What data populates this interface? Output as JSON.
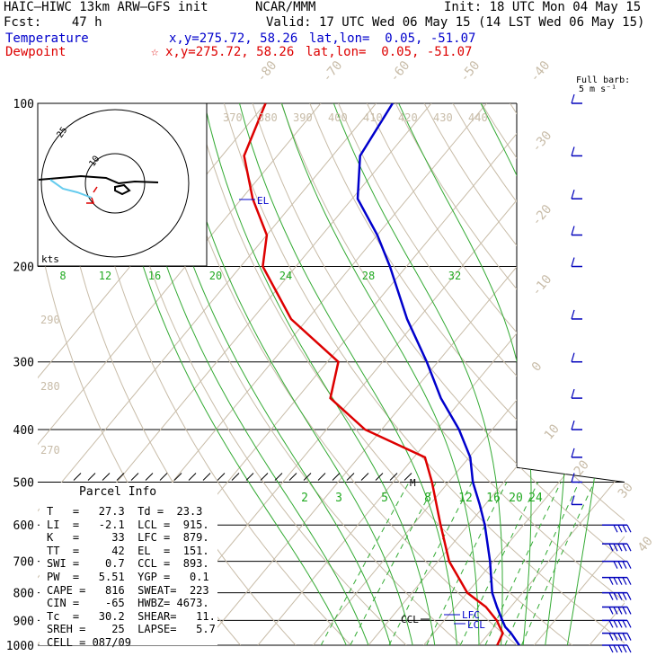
{
  "header": {
    "model": "HAIC–HIWC 13km ARW–GFS init",
    "org": "NCAR/MMM",
    "init": "Init: 18 UTC Mon 04 May 15",
    "fcst": "Fcst:    47 h",
    "valid": "Valid: 17 UTC Wed 06 May 15 (14 LST Wed 06 May 15)",
    "temp_label": "Temperature",
    "temp_xy": "x,y=275.72, 58.26",
    "temp_latlon": "lat,lon=  0.05, -51.07",
    "dew_label": "Dewpoint",
    "dew_star": "☆",
    "dew_xy": "x,y=275.72, 58.26",
    "dew_latlon": "lat,lon=  0.05, -51.07",
    "color_temp": "#0000cc",
    "color_dew": "#dd0000"
  },
  "barb_key": {
    "line1": "Full barb:",
    "line2": "5 m s⁻¹"
  },
  "hodograph": {
    "units": "kts",
    "ring_labels": [
      "10",
      "25"
    ]
  },
  "parcel_info": {
    "title": "Parcel Info",
    "rows": [
      "T   =   27.3  Td =  23.3",
      "LI  =   -2.1  LCL =  915.",
      "K   =     33  LFC =  879.",
      "TT  =     42  EL  =  151.",
      "SWI =    0.7  CCL =  893.",
      "PW  =   5.51  YGP =   0.1",
      "CAPE =   816  SWEAT=  223",
      "CIN =    -65  HWBZ= 4673.",
      "Tc  =   30.2  SHEAR=   11.",
      "SREH =    25  LAPSE=   5.7",
      "CELL = 087/09"
    ]
  },
  "chart_data": {
    "type": "line",
    "chart_kind": "skew-T log-p",
    "y_scale": "log",
    "pressure_ticks": [
      "100",
      "200",
      "300",
      "400",
      "500",
      "600",
      "700",
      "800",
      "900",
      "1000"
    ],
    "pressure_values": [
      100,
      200,
      300,
      400,
      500,
      600,
      700,
      800,
      900,
      1000
    ],
    "ylim": [
      1000,
      100
    ],
    "isotherm_labels": [
      "-80",
      "-70",
      "-60",
      "-50",
      "-40",
      "-30",
      "-20",
      "-10",
      "0",
      "10",
      "20",
      "30",
      "40"
    ],
    "dry_adiabat_labels_upper": [
      "370",
      "380",
      "390",
      "400",
      "410",
      "420",
      "430",
      "440"
    ],
    "dry_adiabat_labels_left": [
      "290",
      "280",
      "270"
    ],
    "moist_adiabat_labels": [
      "8",
      "12",
      "16",
      "20",
      "24",
      "28",
      "32"
    ],
    "mixing_ratio_labels": [
      "2",
      "3",
      "5",
      "8",
      "12",
      "16",
      "20",
      "24"
    ],
    "level_labels": {
      "el": "EL",
      "lfc": "LFC",
      "lcl": "LCL",
      "ccl": "CCL",
      "m": "M"
    },
    "series": [
      {
        "name": "Temperature",
        "color": "#0000cc",
        "points": [
          [
            1000,
            27.3
          ],
          [
            950,
            24
          ],
          [
            925,
            22
          ],
          [
            900,
            20.5
          ],
          [
            850,
            17.5
          ],
          [
            800,
            14.5
          ],
          [
            700,
            9.4
          ],
          [
            600,
            3
          ],
          [
            550,
            -1
          ],
          [
            500,
            -5.6
          ],
          [
            450,
            -9.8
          ],
          [
            400,
            -16
          ],
          [
            350,
            -24
          ],
          [
            300,
            -32
          ],
          [
            250,
            -42
          ],
          [
            200,
            -53
          ],
          [
            175,
            -60
          ],
          [
            150,
            -69
          ],
          [
            125,
            -75
          ],
          [
            100,
            -77
          ]
        ]
      },
      {
        "name": "Dewpoint",
        "color": "#dd0000",
        "points": [
          [
            1000,
            23.3
          ],
          [
            950,
            22.5
          ],
          [
            925,
            21
          ],
          [
            900,
            19.5
          ],
          [
            850,
            15.5
          ],
          [
            800,
            10
          ],
          [
            700,
            2
          ],
          [
            600,
            -5
          ],
          [
            500,
            -13
          ],
          [
            450,
            -18
          ],
          [
            400,
            -33
          ],
          [
            350,
            -44
          ],
          [
            300,
            -48
          ],
          [
            250,
            -63
          ],
          [
            200,
            -76
          ],
          [
            175,
            -80
          ],
          [
            150,
            -88
          ],
          [
            125,
            -96
          ],
          [
            100,
            -100
          ]
        ]
      }
    ],
    "wind_barbs": [
      {
        "p": 1000,
        "spd": 8,
        "dir": 90
      },
      {
        "p": 950,
        "spd": 8,
        "dir": 90
      },
      {
        "p": 900,
        "spd": 8,
        "dir": 90
      },
      {
        "p": 850,
        "spd": 8,
        "dir": 90
      },
      {
        "p": 800,
        "spd": 8,
        "dir": 90
      },
      {
        "p": 750,
        "spd": 8,
        "dir": 90
      },
      {
        "p": 700,
        "spd": 7,
        "dir": 90
      },
      {
        "p": 650,
        "spd": 8,
        "dir": 90
      },
      {
        "p": 600,
        "spd": 6,
        "dir": 90
      },
      {
        "p": 550,
        "spd": 4,
        "dir": 80
      },
      {
        "p": 500,
        "spd": 3,
        "dir": 70
      },
      {
        "p": 450,
        "spd": 3,
        "dir": 60
      },
      {
        "p": 400,
        "spd": 3,
        "dir": 40
      },
      {
        "p": 350,
        "spd": 3,
        "dir": 30
      },
      {
        "p": 300,
        "spd": 3,
        "dir": 20
      },
      {
        "p": 250,
        "spd": 3,
        "dir": 15
      },
      {
        "p": 200,
        "spd": 3,
        "dir": 10
      },
      {
        "p": 175,
        "spd": 3,
        "dir": 10
      },
      {
        "p": 150,
        "spd": 3,
        "dir": 10
      },
      {
        "p": 125,
        "spd": 3,
        "dir": 15
      },
      {
        "p": 100,
        "spd": 3,
        "dir": 20
      }
    ]
  }
}
